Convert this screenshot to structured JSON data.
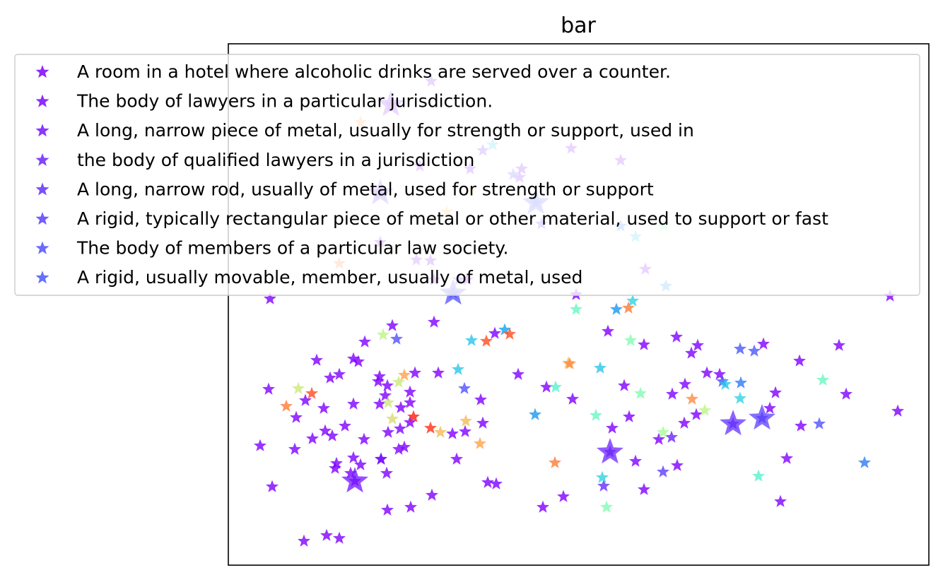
{
  "chart_data": {
    "type": "scatter",
    "title": "bar",
    "xlabel": "",
    "ylabel": "",
    "marker": "star",
    "grid": false,
    "axes_ticks": false,
    "legend_placement": "top",
    "colormap": "rainbow",
    "series": [
      {
        "name": "A room in a hotel where alcoholic drinks are served over a counter.",
        "color": "#8000ff"
      },
      {
        "name": "The body of lawyers in a particular jurisdiction.",
        "color": "#7a08ff"
      },
      {
        "name": "A long, narrow piece of metal, usually for strength or support, used in",
        "color": "#7413ff"
      },
      {
        "name": "the body of qualified lawyers in a jurisdiction",
        "color": "#6c24fe"
      },
      {
        "name": "A long, narrow rod, usually of metal, used for strength or support",
        "color": "#6430fd"
      },
      {
        "name": "A rigid, typically rectangular piece of metal or other material, used to support or fast",
        "color": "#5a3ffc"
      },
      {
        "name": "The body of members of a particular law society.",
        "color": "#5050fb"
      },
      {
        "name": "A rigid, usually movable, member, usually of metal, used",
        "color": "#4a58fb"
      }
    ],
    "points": [
      [
        382,
        423,
        0
      ],
      [
        368,
        631,
        0
      ],
      [
        380,
        551,
        0
      ],
      [
        385,
        689,
        0
      ],
      [
        430,
        766,
        0
      ],
      [
        462,
        758,
        0
      ],
      [
        480,
        762,
        0
      ],
      [
        417,
        636,
        0
      ],
      [
        442,
        621,
        0
      ],
      [
        460,
        610,
        0
      ],
      [
        470,
        617,
        0
      ],
      [
        488,
        603,
        0
      ],
      [
        515,
        622,
        0
      ],
      [
        500,
        648,
        0
      ],
      [
        476,
        656,
        0
      ],
      [
        474,
        663,
        0
      ],
      [
        496,
        670,
        0
      ],
      [
        510,
        658,
        0
      ],
      [
        547,
        670,
        0
      ],
      [
        539,
        650,
        0
      ],
      [
        564,
        636,
        0
      ],
      [
        572,
        633,
        0
      ],
      [
        566,
        607,
        0
      ],
      [
        549,
        612,
        0
      ],
      [
        580,
        598,
        0
      ],
      [
        567,
        577,
        0
      ],
      [
        580,
        570,
        0
      ],
      [
        580,
        555,
        0
      ],
      [
        545,
        560,
        0
      ],
      [
        537,
        572,
        0
      ],
      [
        548,
        546,
        0
      ],
      [
        537,
        533,
        0
      ],
      [
        507,
        512,
        0
      ],
      [
        516,
        484,
        0
      ],
      [
        448,
        510,
        0
      ],
      [
        467,
        535,
        0
      ],
      [
        480,
        530,
        0
      ],
      [
        500,
        508,
        0
      ],
      [
        535,
        540,
        0
      ],
      [
        500,
        572,
        0
      ],
      [
        458,
        578,
        0
      ],
      [
        432,
        567,
        0
      ],
      [
        419,
        591,
        0
      ],
      [
        548,
        722,
        0
      ],
      [
        581,
        718,
        0
      ],
      [
        611,
        701,
        0
      ],
      [
        646,
        650,
        0
      ],
      [
        640,
        614,
        0
      ],
      [
        658,
        611,
        0
      ],
      [
        683,
        599,
        0
      ],
      [
        680,
        566,
        0
      ],
      [
        620,
        528,
        0
      ],
      [
        587,
        528,
        0
      ],
      [
        614,
        456,
        0
      ],
      [
        555,
        461,
        0
      ],
      [
        690,
        683,
        0
      ],
      [
        702,
        685,
        0
      ],
      [
        733,
        530,
        0
      ],
      [
        768,
        718,
        0
      ],
      [
        797,
        703,
        0
      ],
      [
        810,
        565,
        0
      ],
      [
        773,
        548,
        0
      ],
      [
        860,
        469,
        0
      ],
      [
        911,
        488,
        0
      ],
      [
        957,
        477,
        0
      ],
      [
        978,
        500,
        0
      ],
      [
        987,
        489,
        0
      ],
      [
        1000,
        528,
        0
      ],
      [
        1018,
        530,
        0
      ],
      [
        1080,
        487,
        0
      ],
      [
        1131,
        511,
        0
      ],
      [
        1187,
        489,
        0
      ],
      [
        1197,
        558,
        0
      ],
      [
        1097,
        556,
        0
      ],
      [
        1089,
        578,
        0
      ],
      [
        1133,
        603,
        0
      ],
      [
        1113,
        649,
        0
      ],
      [
        1104,
        710,
        0
      ],
      [
        1270,
        582,
        0
      ],
      [
        1259,
        419,
        0
      ],
      [
        969,
        544,
        0
      ],
      [
        985,
        587,
        0
      ],
      [
        968,
        599,
        0
      ],
      [
        951,
        558,
        0
      ],
      [
        932,
        622,
        0
      ],
      [
        958,
        659,
        0
      ],
      [
        911,
        693,
        0
      ],
      [
        866,
        606,
        0
      ],
      [
        890,
        590,
        0
      ],
      [
        899,
        653,
        0
      ],
      [
        883,
        546,
        0
      ],
      [
        808,
        210,
        0
      ],
      [
        878,
        227,
        0
      ],
      [
        913,
        381,
        0
      ],
      [
        815,
        417,
        0
      ],
      [
        738,
        239,
        0
      ],
      [
        665,
        239,
        0
      ],
      [
        594,
        235,
        0
      ],
      [
        609,
        369,
        0
      ],
      [
        614,
        396,
        0
      ],
      [
        661,
        396,
        0
      ],
      [
        700,
        472,
        0
      ],
      [
        538,
        273,
        4
      ],
      [
        553,
        148,
        1
      ],
      [
        502,
        681,
        2
      ],
      [
        863,
        640,
        3
      ],
      [
        1037,
        600,
        4
      ],
      [
        1078,
        592,
        5
      ],
      [
        641,
        415,
        6
      ],
      [
        758,
        287,
        7
      ],
      [
        589,
        368,
        2
      ],
      [
        683,
        213,
        3
      ],
      [
        610,
        115,
        1
      ],
      [
        538,
        343,
        0
      ],
      [
        649,
        396,
        5
      ],
      [
        766,
        317,
        4
      ],
      [
        735,
        251,
        1
      ],
      [
        726,
        247,
        6
      ],
      [
        539,
        650,
        2
      ],
      [
        854,
        688,
        4
      ],
      [
        938,
        668,
        5
      ],
      [
        950,
        619,
        3
      ],
      [
        1159,
        600,
        6
      ],
      [
        1067,
        497,
        7
      ],
      [
        1047,
        494,
        7
      ],
      [
        1022,
        540,
        6
      ],
      [
        561,
        480,
        6
      ],
      [
        657,
        550,
        6
      ],
      [
        1223,
        655,
        9
      ],
      [
        1048,
        542,
        9
      ],
      [
        757,
        587,
        10
      ],
      [
        872,
        438,
        10
      ],
      [
        1026,
        544,
        12
      ],
      [
        714,
        467,
        11
      ],
      [
        849,
        521,
        12
      ],
      [
        667,
        482,
        12
      ],
      [
        648,
        523,
        12
      ],
      [
        899,
        335,
        12
      ],
      [
        895,
        426,
        13
      ],
      [
        1047,
        564,
        13
      ],
      [
        852,
        676,
        13
      ],
      [
        697,
        205,
        12
      ],
      [
        786,
        548,
        15
      ],
      [
        1073,
        674,
        15
      ],
      [
        815,
        438,
        16
      ],
      [
        843,
        588,
        16
      ],
      [
        1164,
        538,
        16
      ],
      [
        906,
        557,
        17
      ],
      [
        892,
        482,
        17
      ],
      [
        858,
        718,
        17
      ],
      [
        939,
        320,
        17
      ],
      [
        938,
        612,
        19
      ],
      [
        997,
        581,
        20
      ],
      [
        542,
        474,
        20
      ],
      [
        422,
        550,
        21
      ],
      [
        549,
        570,
        21
      ],
      [
        555,
        593,
        22
      ],
      [
        564,
        541,
        21
      ],
      [
        804,
        514,
        24
      ],
      [
        623,
        612,
        24
      ],
      [
        659,
        596,
        24
      ],
      [
        665,
        270,
        23
      ],
      [
        632,
        300,
        24
      ],
      [
        510,
        173,
        25
      ],
      [
        572,
        531,
        25
      ],
      [
        679,
        628,
        25
      ],
      [
        979,
        565,
        26
      ],
      [
        806,
        515,
        26
      ],
      [
        889,
        436,
        27
      ],
      [
        480,
        373,
        27
      ],
      [
        405,
        575,
        27
      ],
      [
        785,
        655,
        27
      ],
      [
        441,
        557,
        29
      ],
      [
        688,
        483,
        29
      ],
      [
        721,
        473,
        29
      ],
      [
        609,
        606,
        30
      ],
      [
        585,
        590,
        31
      ],
      [
        942,
        405,
        10
      ],
      [
        878,
        320,
        9
      ]
    ],
    "big_points": [
      [
        538,
        273,
        4
      ],
      [
        553,
        148,
        1
      ],
      [
        502,
        681,
        2
      ],
      [
        863,
        640,
        3
      ],
      [
        1037,
        600,
        4
      ],
      [
        1078,
        592,
        5
      ],
      [
        641,
        415,
        6
      ],
      [
        758,
        287,
        7
      ]
    ],
    "palette": [
      "#8000ff",
      "#7a08ff",
      "#7413ff",
      "#6c24fe",
      "#6430fd",
      "#5a3ffc",
      "#5050fb",
      "#4a58fb",
      "#3a6cf8",
      "#2e7bf6",
      "#1a96f3",
      "#10a2f0",
      "#28c6e8",
      "#30d3e2",
      "#46ebd6",
      "#56f2cc",
      "#68f7c0",
      "#7efdb1",
      "#90ffa4",
      "#a6fb96",
      "#bcf587",
      "#cce87a",
      "#dadb6e",
      "#e6cc62",
      "#f2bc55",
      "#ffa24a",
      "#ff8a3e",
      "#ff7a35",
      "#ff622c",
      "#ff4a20",
      "#ff3015",
      "#ff1c0a"
    ]
  }
}
